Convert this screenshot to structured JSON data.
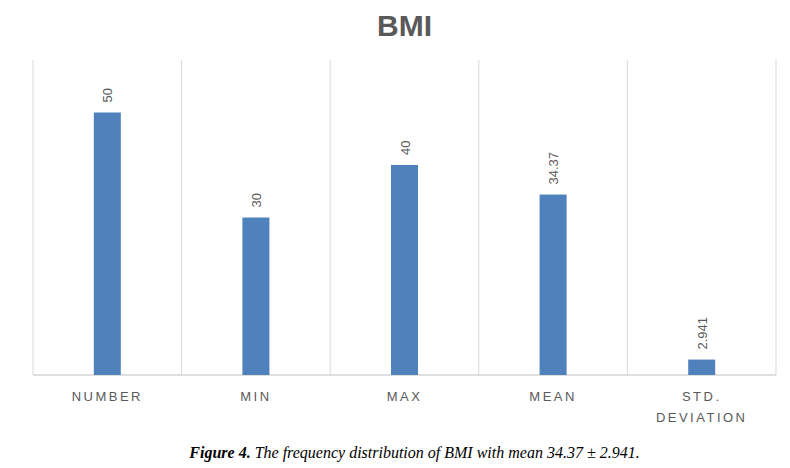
{
  "chart_data": {
    "type": "bar",
    "title": "BMI",
    "categories": [
      "NUMBER",
      "MIN",
      "MAX",
      "MEAN",
      "STD. DEVIATION"
    ],
    "values": [
      50,
      30,
      40,
      34.37,
      2.941
    ],
    "color": "#4f81bd",
    "ylim": [
      0,
      60
    ],
    "data_labels": true,
    "tick_labels": "x",
    "caption_label": "Figure 4.",
    "caption": "The frequency distribution of BMI with mean 34.37 ± 2.941."
  }
}
